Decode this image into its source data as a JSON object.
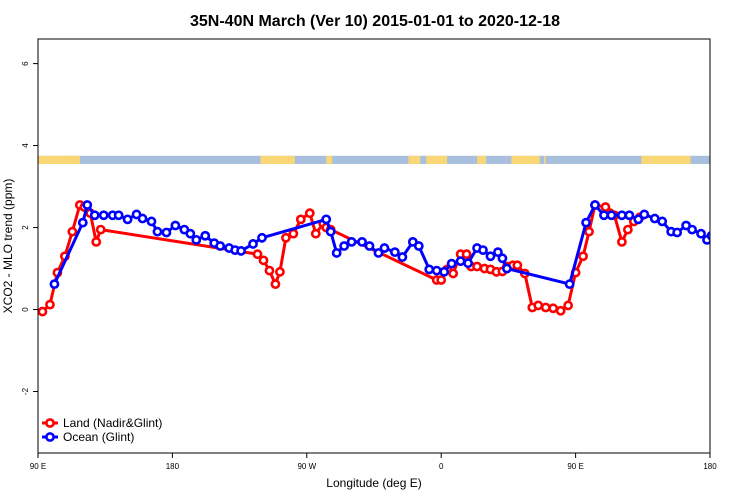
{
  "chart_data": {
    "type": "line",
    "title": "35N-40N March (Ver 10)   2015-01-01 to 2020-12-18",
    "xlabel": "Longitude (deg E)",
    "ylabel": "XCO2 - MLO trend (ppm)",
    "xlim": [
      90,
      540
    ],
    "ylim": [
      -3.5,
      6.6
    ],
    "x_ticks": [
      {
        "value": 90,
        "label": "90 E"
      },
      {
        "value": 180,
        "label": "180"
      },
      {
        "value": 270,
        "label": "90 W"
      },
      {
        "value": 360,
        "label": "0"
      },
      {
        "value": 450,
        "label": "90 E"
      },
      {
        "value": 540,
        "label": "180"
      }
    ],
    "y_ticks": [
      {
        "value": -2,
        "label": "-2"
      },
      {
        "value": 0,
        "label": "0"
      },
      {
        "value": 2,
        "label": "2"
      },
      {
        "value": 4,
        "label": "4"
      },
      {
        "value": 6,
        "label": "6"
      }
    ],
    "grid": false,
    "legend_position": "bottom-left",
    "land_ocean_strip": {
      "y_range": [
        3.55,
        3.75
      ],
      "land_color": "#f9d777",
      "ocean_color": "#a8bfde",
      "land_segments": [
        [
          90,
          116
        ],
        [
          105,
          118
        ],
        [
          104,
          110
        ],
        [
          239,
          262
        ],
        [
          283,
          287
        ],
        [
          350,
          359
        ],
        [
          338,
          346
        ],
        [
          384,
          390
        ],
        [
          407,
          426
        ],
        [
          358,
          364
        ],
        [
          429,
          430
        ],
        [
          494,
          527
        ],
        [
          505,
          512
        ],
        [
          515,
          520
        ]
      ]
    },
    "series": [
      {
        "name": "Land (Nadir&Glint)",
        "color": "#ff0000",
        "x": [
          93,
          98,
          103,
          108,
          113,
          118,
          121,
          125,
          129,
          132,
          237,
          241,
          245,
          249,
          252,
          256,
          261,
          266,
          272,
          276,
          281,
          283,
          286,
          357,
          360,
          364,
          368,
          373,
          377,
          380,
          384,
          389,
          393,
          397,
          401,
          404,
          408,
          411,
          416,
          421,
          425,
          430,
          435,
          440,
          445,
          450,
          455,
          459,
          463,
          470,
          473,
          476,
          481,
          485,
          489,
          493
        ],
        "y": [
          -0.05,
          0.12,
          0.9,
          1.3,
          1.9,
          2.55,
          2.5,
          2.35,
          1.65,
          1.95,
          1.35,
          1.2,
          0.95,
          0.62,
          0.92,
          1.75,
          1.85,
          2.2,
          2.35,
          1.85,
          2.1,
          2.0,
          1.95,
          0.72,
          0.72,
          0.98,
          0.88,
          1.35,
          1.35,
          1.05,
          1.05,
          1.0,
          0.98,
          0.92,
          0.93,
          1.05,
          1.08,
          1.08,
          0.88,
          0.05,
          0.1,
          0.05,
          0.03,
          -0.03,
          0.1,
          0.9,
          1.3,
          1.9,
          2.55,
          2.5,
          2.35,
          2.3,
          1.65,
          1.95,
          2.15,
          2.25
        ]
      },
      {
        "name": "Ocean (Glint)",
        "color": "#0000ff",
        "x": [
          101,
          120,
          123,
          128,
          134,
          140,
          144,
          150,
          156,
          160,
          166,
          170,
          176,
          182,
          188,
          192,
          196,
          202,
          208,
          212,
          218,
          222,
          226,
          234,
          240,
          283,
          286,
          290,
          295,
          300,
          307,
          312,
          318,
          322,
          329,
          334,
          341,
          345,
          352,
          357,
          362,
          367,
          373,
          378,
          384,
          388,
          393,
          398,
          401,
          404,
          446,
          457,
          463,
          469,
          474,
          481,
          486,
          492,
          496,
          503,
          508,
          514,
          518,
          524,
          528,
          534,
          538,
          541,
          543,
          545,
          548
        ],
        "y": [
          0.62,
          2.12,
          2.55,
          2.3,
          2.3,
          2.3,
          2.3,
          2.2,
          2.32,
          2.22,
          2.15,
          1.9,
          1.88,
          2.05,
          1.95,
          1.85,
          1.7,
          1.8,
          1.62,
          1.55,
          1.5,
          1.45,
          1.43,
          1.6,
          1.75,
          2.2,
          1.9,
          1.38,
          1.55,
          1.65,
          1.65,
          1.55,
          1.38,
          1.5,
          1.4,
          1.28,
          1.65,
          1.55,
          0.98,
          0.95,
          0.92,
          1.12,
          1.18,
          1.13,
          1.5,
          1.45,
          1.3,
          1.4,
          1.25,
          1.0,
          0.62,
          2.12,
          2.55,
          2.3,
          2.3,
          2.3,
          2.3,
          2.2,
          2.32,
          2.22,
          2.15,
          1.9,
          1.88,
          2.05,
          1.95,
          1.85,
          1.7,
          1.8,
          1.62,
          1.55,
          1.5
        ]
      }
    ]
  }
}
